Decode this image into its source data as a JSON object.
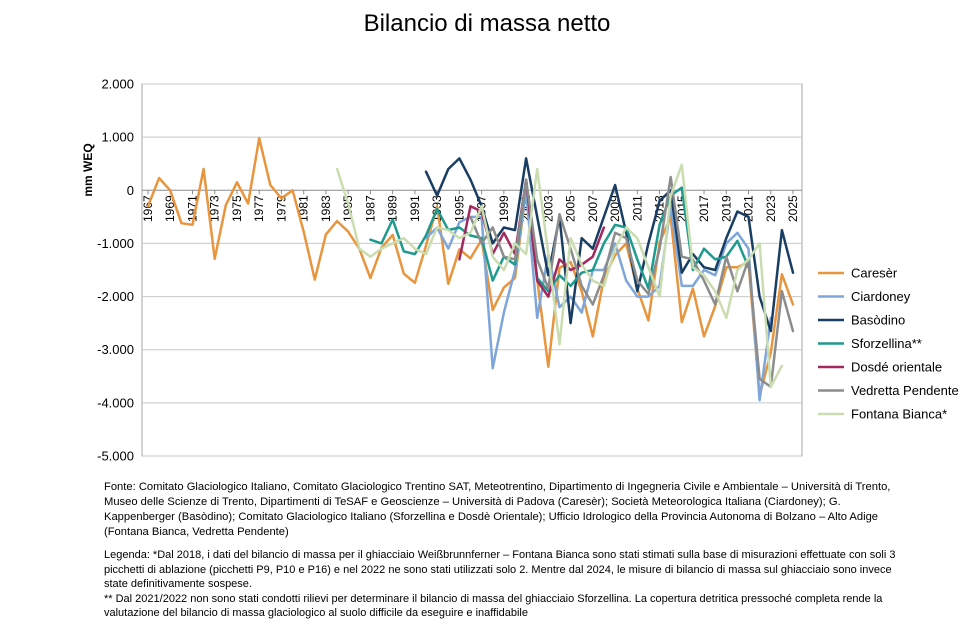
{
  "chart_data": {
    "type": "line",
    "title": "Bilancio di massa netto",
    "ylabel": "mm WEQ",
    "ylim": [
      -5000,
      2000
    ],
    "ytick_values": [
      2000,
      1000,
      0,
      -1000,
      -2000,
      -3000,
      -4000,
      -5000
    ],
    "ytick_labels": [
      "2.000",
      "1.000",
      "0",
      "-1.000",
      "-2.000",
      "-3.000",
      "-4.000",
      "-5.000"
    ],
    "xlim": [
      1967,
      2025
    ],
    "xtick_labels": [
      "1967",
      "1969",
      "1971",
      "1973",
      "1975",
      "1977",
      "1979",
      "1981",
      "1983",
      "1985",
      "1987",
      "1989",
      "1991",
      "1993",
      "1995",
      "1997",
      "1999",
      "2001",
      "2003",
      "2005",
      "2007",
      "2009",
      "2011",
      "2013",
      "2015",
      "2017",
      "2019",
      "2021",
      "2023",
      "2025"
    ],
    "grid": "horizontal",
    "legend_position": "right",
    "series": [
      {
        "name": "Caresèr",
        "color": "#E8953E",
        "start": 1967,
        "values": [
          -300,
          230,
          0,
          -620,
          -650,
          400,
          -1290,
          -280,
          150,
          -250,
          980,
          100,
          -150,
          0,
          -780,
          -1680,
          -830,
          -580,
          -780,
          -1100,
          -1650,
          -1080,
          -840,
          -1570,
          -1740,
          -1040,
          -300,
          -1760,
          -1110,
          -1280,
          -930,
          -2250,
          -1830,
          -1650,
          0,
          -1680,
          -3320,
          -1460,
          -1350,
          -1900,
          -2750,
          -1650,
          -1220,
          -1000,
          -1850,
          -2450,
          -980,
          -500,
          -2480,
          -1850,
          -2750,
          -2180,
          -1450,
          -1450,
          -1350,
          -3870,
          -3050,
          -1580,
          -2150
        ]
      },
      {
        "name": "Ciardoney",
        "color": "#7FA6DA",
        "start": 1992,
        "values": [
          -900,
          -700,
          -1100,
          -600,
          -500,
          -500,
          -3350,
          -2300,
          -1500,
          0,
          -2400,
          -1200,
          -2200,
          -2000,
          -2300,
          -1500,
          -1500,
          -1000,
          -1700,
          -2000,
          -2000,
          -1800,
          -300,
          -1800,
          -1800,
          -1500,
          -1600,
          -1000,
          -800,
          -1100,
          -3950,
          -2400
        ]
      },
      {
        "name": "Basòdino",
        "color": "#1A3E63",
        "start": 1992,
        "values": [
          350,
          -100,
          400,
          600,
          200,
          -300,
          -1000,
          -700,
          -750,
          600,
          -500,
          -1600,
          -500,
          -2500,
          -900,
          -1100,
          -500,
          100,
          -800,
          -1900,
          -1000,
          -200,
          0,
          -1550,
          -1200,
          -1450,
          -1500,
          -900,
          -400,
          -500,
          -2000,
          -2650,
          -750,
          -1550
        ]
      },
      {
        "name": "Sforzellina**",
        "color": "#1E9A8E",
        "start": 1987,
        "values": [
          -930,
          -1000,
          -550,
          -1150,
          -1200,
          -850,
          -350,
          -750,
          -700,
          -850,
          -900,
          -1700,
          -1250,
          -1400,
          200,
          -1650,
          -1900,
          -1600,
          -1800,
          -1550,
          -1500,
          -1000,
          -650,
          -700,
          -1300,
          -1850,
          -650,
          -100,
          50,
          -1500,
          -1100,
          -1300,
          -1250,
          -950,
          -1450
        ]
      },
      {
        "name": "Dosdé orientale",
        "color": "#A3285E",
        "start": 1995,
        "values": [
          -1300,
          -300,
          -400,
          -1200,
          -800,
          -1200,
          200,
          -1700,
          -2000,
          -1300,
          -1500,
          -1400,
          -1250,
          -700
        ]
      },
      {
        "name": "Vedretta Pendente",
        "color": "#8C8C8C",
        "start": 1996,
        "values": [
          -500,
          -1000,
          -700,
          -1250,
          -1300,
          200,
          -1300,
          -1850,
          -450,
          -1100,
          -1800,
          -2150,
          -1600,
          -800,
          -900,
          -1700,
          -1950,
          -1100,
          250,
          -1250,
          -1300,
          -1700,
          -2150,
          -1250,
          -1900,
          -1300,
          -3550,
          -3700,
          -1900,
          -2650
        ]
      },
      {
        "name": "Fontana Bianca*",
        "color": "#C9DDB0",
        "start": 1984,
        "values": [
          400,
          -250,
          -1100,
          -1250,
          -1100,
          -1000,
          -900,
          -1100,
          -1200,
          -700,
          -750,
          -900,
          -800,
          -300,
          -1250,
          -1500,
          -1000,
          -1200,
          400,
          -1200,
          -2900,
          -900,
          -1400,
          -1700,
          -1800,
          -1100,
          -700,
          -900,
          -1450,
          -2000,
          -100,
          480,
          -1450,
          -1600,
          -1900,
          -2400,
          -1500,
          -1300,
          -1000,
          -3700,
          -3300
        ]
      }
    ]
  },
  "source_note": "Fonte: Comitato Glaciologico Italiano, Comitato Glaciologico Trentino SAT, Meteotrentino, Dipartimento di Ingegneria Civile e Ambientale – Università di Trento, Museo delle Scienze di Trento, Dipartimenti di TeSAF e Geoscienze – Università di Padova (Caresèr); Società Meteorologica Italiana (Ciardoney); G. Kappenberger (Basòdino); Comitato Glaciologico Italiano (Sforzellina e Dosdè Orientale); Ufficio Idrologico della Provincia Autonoma di Bolzano – Alto Adige (Fontana Bianca, Vedretta Pendente)",
  "legend_note_1": "Legenda: *Dal 2018, i dati del bilancio di massa per il ghiacciaio Weißbrunnferner – Fontana Bianca sono stati stimati sulla base di misurazioni effettuate con soli 3 picchetti di ablazione (picchetti P9, P10 e P16) e nel 2022 ne sono stati utilizzati solo 2. Mentre dal 2024, le misure di bilancio di massa sul ghiacciaio sono invece state definitivamente sospese.",
  "legend_note_2": "** Dal 2021/2022 non sono stati condotti rilievi per determinare il bilancio di massa del ghiacciaio Sforzellina. La copertura detritica pressoché completa rende la valutazione del bilancio di massa glaciologico al suolo difficile da eseguire e inaffidabile"
}
